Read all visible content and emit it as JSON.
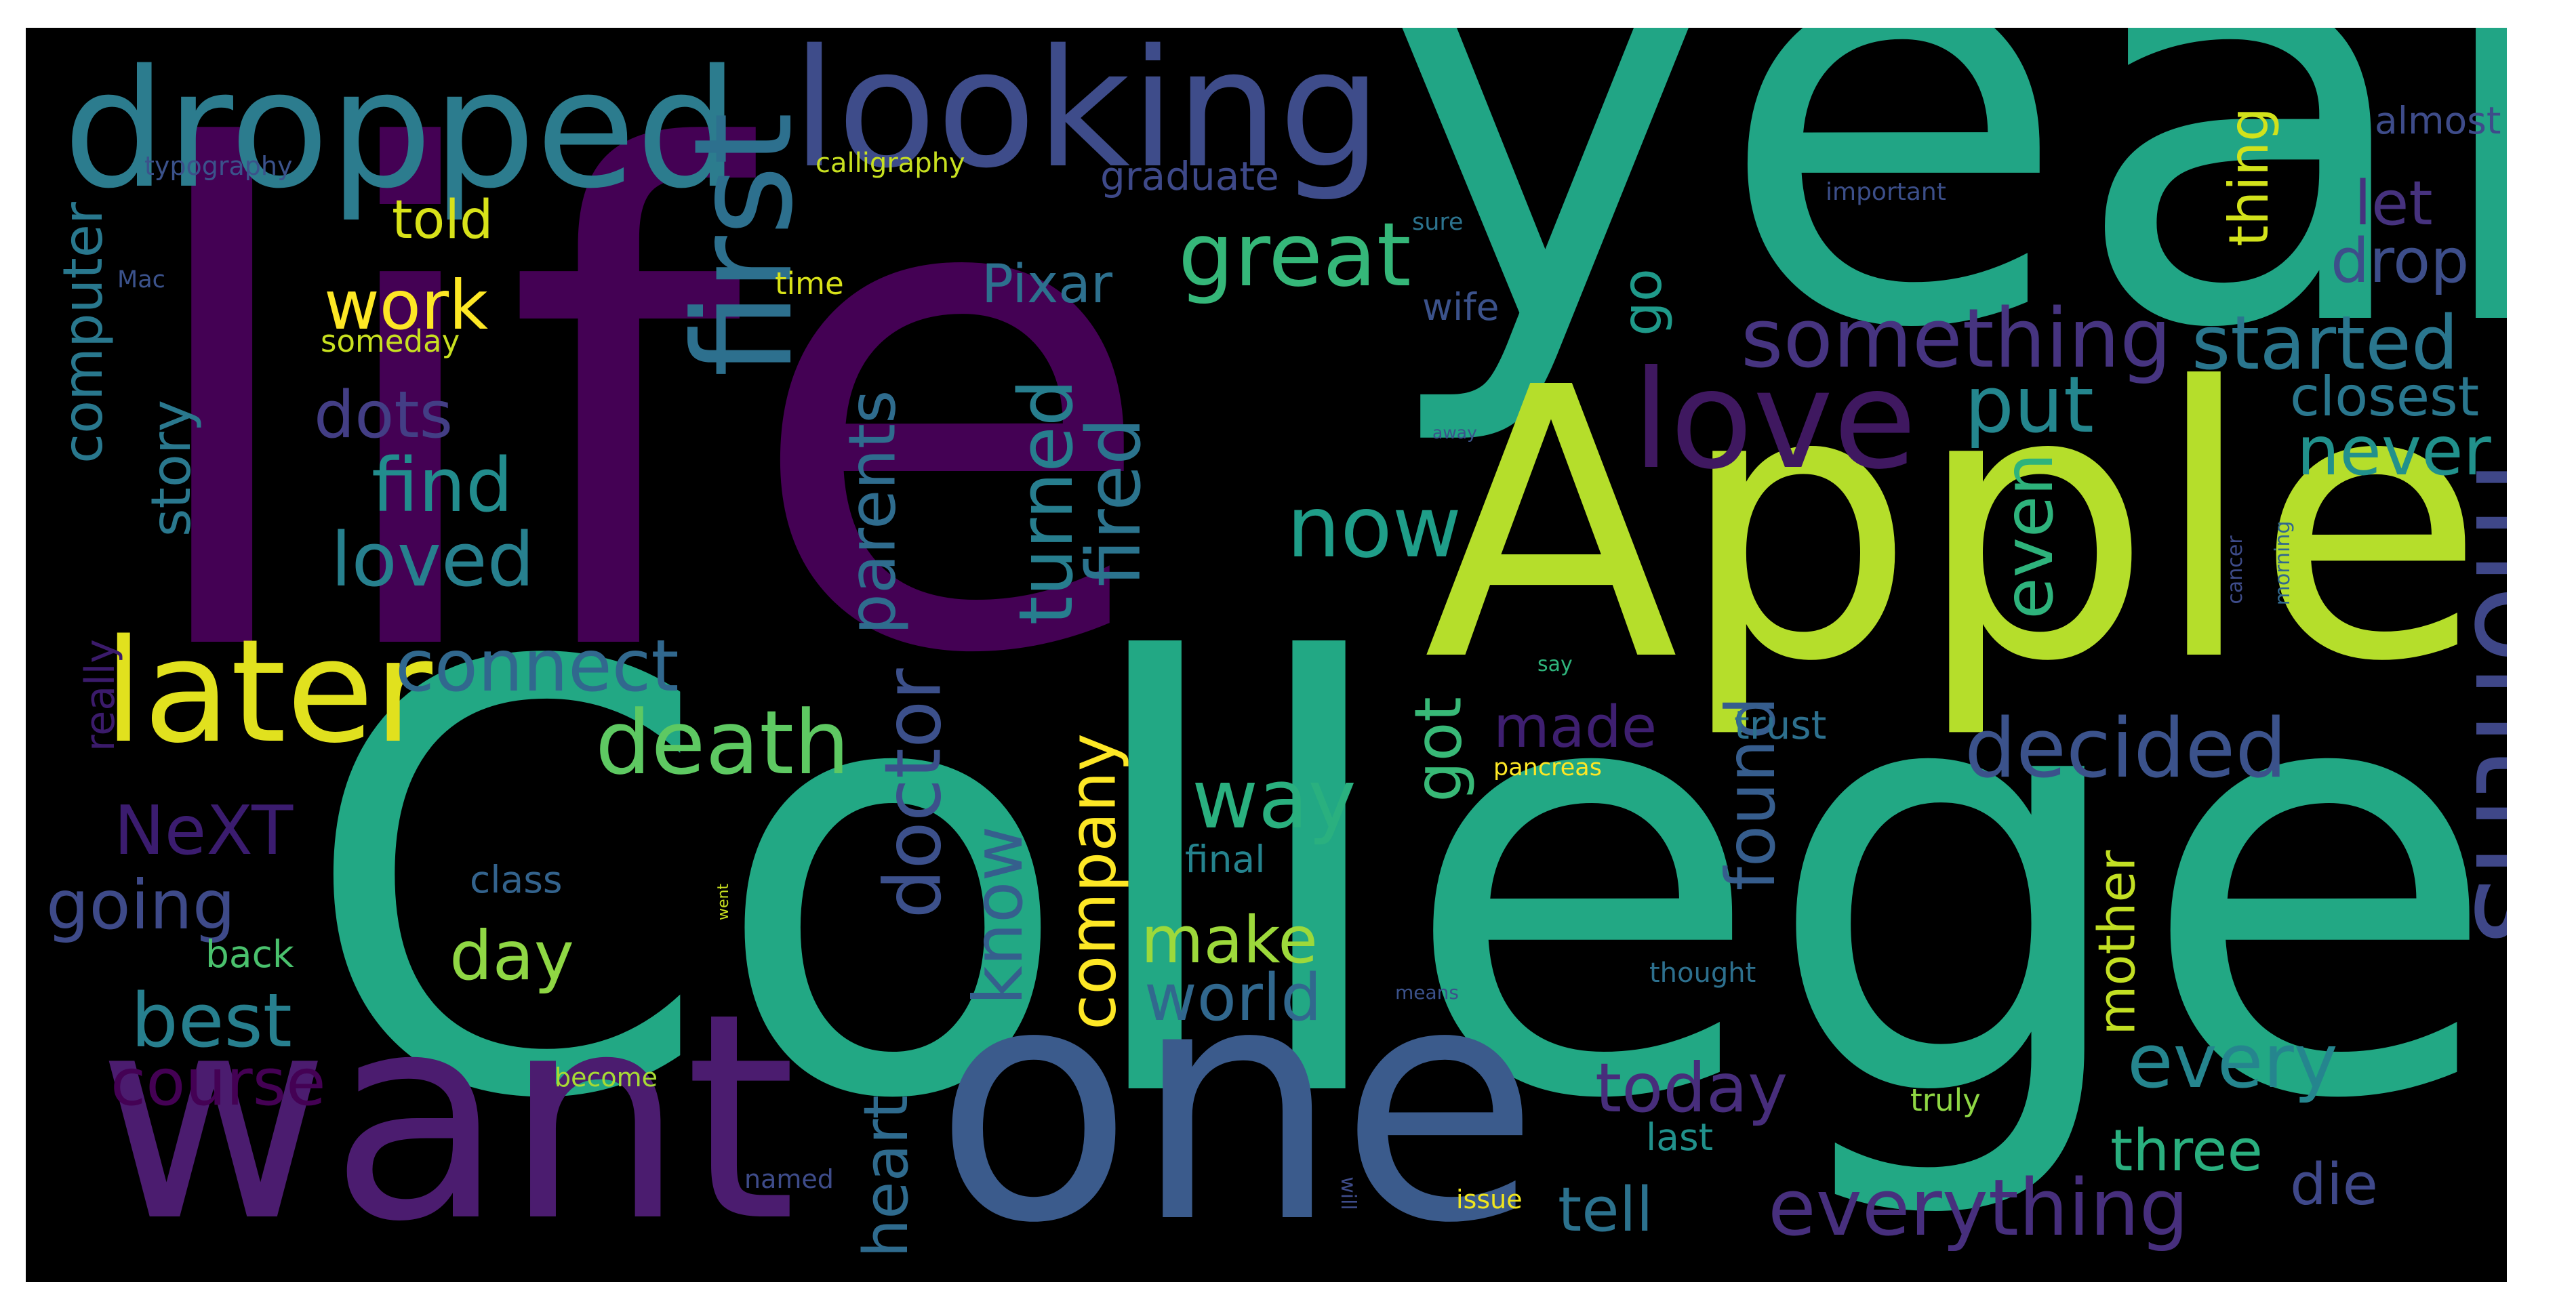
{
  "colors": {
    "background": "#000000",
    "frame": "#ffffff"
  },
  "words": [
    {
      "text": "life",
      "color": "#440154"
    },
    {
      "text": "year",
      "color": "#21a585"
    },
    {
      "text": "College",
      "color": "#22a884"
    },
    {
      "text": "Apple",
      "color": "#b5de2b"
    },
    {
      "text": "one",
      "color": "#3b5b8c"
    },
    {
      "text": "want",
      "color": "#4b1c6f"
    },
    {
      "text": "dropped",
      "color": "#2c7c8e"
    },
    {
      "text": "looking",
      "color": "#3e4c8a"
    },
    {
      "text": "months",
      "color": "#3f4788"
    },
    {
      "text": "later",
      "color": "#e1e11e"
    },
    {
      "text": "first",
      "color": "#2d708e"
    },
    {
      "text": "love",
      "color": "#3f1860"
    },
    {
      "text": "everything",
      "color": "#472f7d"
    },
    {
      "text": "great",
      "color": "#35b779"
    },
    {
      "text": "something",
      "color": "#463480"
    },
    {
      "text": "started",
      "color": "#2a768e"
    },
    {
      "text": "decided",
      "color": "#3b528b"
    },
    {
      "text": "death",
      "color": "#5ec962"
    },
    {
      "text": "connect",
      "color": "#31688e"
    },
    {
      "text": "now",
      "color": "#1f9e89"
    },
    {
      "text": "company",
      "color": "#fde725"
    },
    {
      "text": "work",
      "color": "#fde725"
    },
    {
      "text": "find",
      "color": "#228c8d"
    },
    {
      "text": "loved",
      "color": "#27808e"
    },
    {
      "text": "computer",
      "color": "#29788e"
    },
    {
      "text": "story",
      "color": "#2a788e"
    },
    {
      "text": "dots",
      "color": "#433e85"
    },
    {
      "text": "told",
      "color": "#d8e219"
    },
    {
      "text": "NeXT",
      "color": "#3b1c6f"
    },
    {
      "text": "going",
      "color": "#3e4a89"
    },
    {
      "text": "best",
      "color": "#277f8e"
    },
    {
      "text": "course",
      "color": "#440154"
    },
    {
      "text": "day",
      "color": "#8fd744"
    },
    {
      "text": "make",
      "color": "#9dd93b"
    },
    {
      "text": "world",
      "color": "#31688e"
    },
    {
      "text": "way",
      "color": "#2ab07f"
    },
    {
      "text": "doctor",
      "color": "#3c508b"
    },
    {
      "text": "know",
      "color": "#355f8d"
    },
    {
      "text": "parents",
      "color": "#2f6c8e"
    },
    {
      "text": "turned",
      "color": "#277e8e"
    },
    {
      "text": "fired",
      "color": "#2b748e"
    },
    {
      "text": "heart",
      "color": "#2f6b8e"
    },
    {
      "text": "got",
      "color": "#38b977"
    },
    {
      "text": "made",
      "color": "#3e1f70"
    },
    {
      "text": "go",
      "color": "#1f9a8a"
    },
    {
      "text": "put",
      "color": "#24868e"
    },
    {
      "text": "even",
      "color": "#2eb37c"
    },
    {
      "text": "found",
      "color": "#365d8d"
    },
    {
      "text": "today",
      "color": "#472d7b"
    },
    {
      "text": "every",
      "color": "#25858e"
    },
    {
      "text": "tell",
      "color": "#2c728e"
    },
    {
      "text": "three",
      "color": "#2ab07f"
    },
    {
      "text": "die",
      "color": "#3f4889"
    },
    {
      "text": "mother",
      "color": "#c2df23"
    },
    {
      "text": "never",
      "color": "#21918c"
    },
    {
      "text": "closest",
      "color": "#2a778e"
    },
    {
      "text": "drop",
      "color": "#3d4e8a"
    },
    {
      "text": "let",
      "color": "#46327e"
    },
    {
      "text": "thing",
      "color": "#d2e21b"
    },
    {
      "text": "Pixar",
      "color": "#2d708e"
    },
    {
      "text": "graduate",
      "color": "#3e4989"
    },
    {
      "text": "really",
      "color": "#3b1b6b"
    },
    {
      "text": "trust",
      "color": "#2d708e"
    },
    {
      "text": "final",
      "color": "#25838e"
    },
    {
      "text": "class",
      "color": "#33638d"
    },
    {
      "text": "back",
      "color": "#4ac16d"
    },
    {
      "text": "time",
      "color": "#d8e219"
    },
    {
      "text": "someday",
      "color": "#c8e020"
    },
    {
      "text": "calligraphy",
      "color": "#c8e020"
    },
    {
      "text": "typography",
      "color": "#3b528b"
    },
    {
      "text": "important",
      "color": "#3c4f8a"
    },
    {
      "text": "almost",
      "color": "#3e4c8a"
    },
    {
      "text": "sure",
      "color": "#2c738e"
    },
    {
      "text": "wife",
      "color": "#3b528b"
    },
    {
      "text": "Mac",
      "color": "#3b528b"
    },
    {
      "text": "become",
      "color": "#a8db34"
    },
    {
      "text": "named",
      "color": "#3e4c8a"
    },
    {
      "text": "truly",
      "color": "#8fd744"
    },
    {
      "text": "last",
      "color": "#21918c"
    },
    {
      "text": "thought",
      "color": "#2d708e"
    },
    {
      "text": "issue",
      "color": "#f1e51d"
    },
    {
      "text": "means",
      "color": "#3b528b"
    },
    {
      "text": "pancreas",
      "color": "#fde725"
    },
    {
      "text": "say",
      "color": "#2fb47c"
    },
    {
      "text": "cancer",
      "color": "#3e4c8a"
    },
    {
      "text": "morning",
      "color": "#31688e"
    },
    {
      "text": "away",
      "color": "#3b528b"
    },
    {
      "text": "went",
      "color": "#c8e020"
    },
    {
      "text": "will",
      "color": "#3e4c8a"
    }
  ]
}
